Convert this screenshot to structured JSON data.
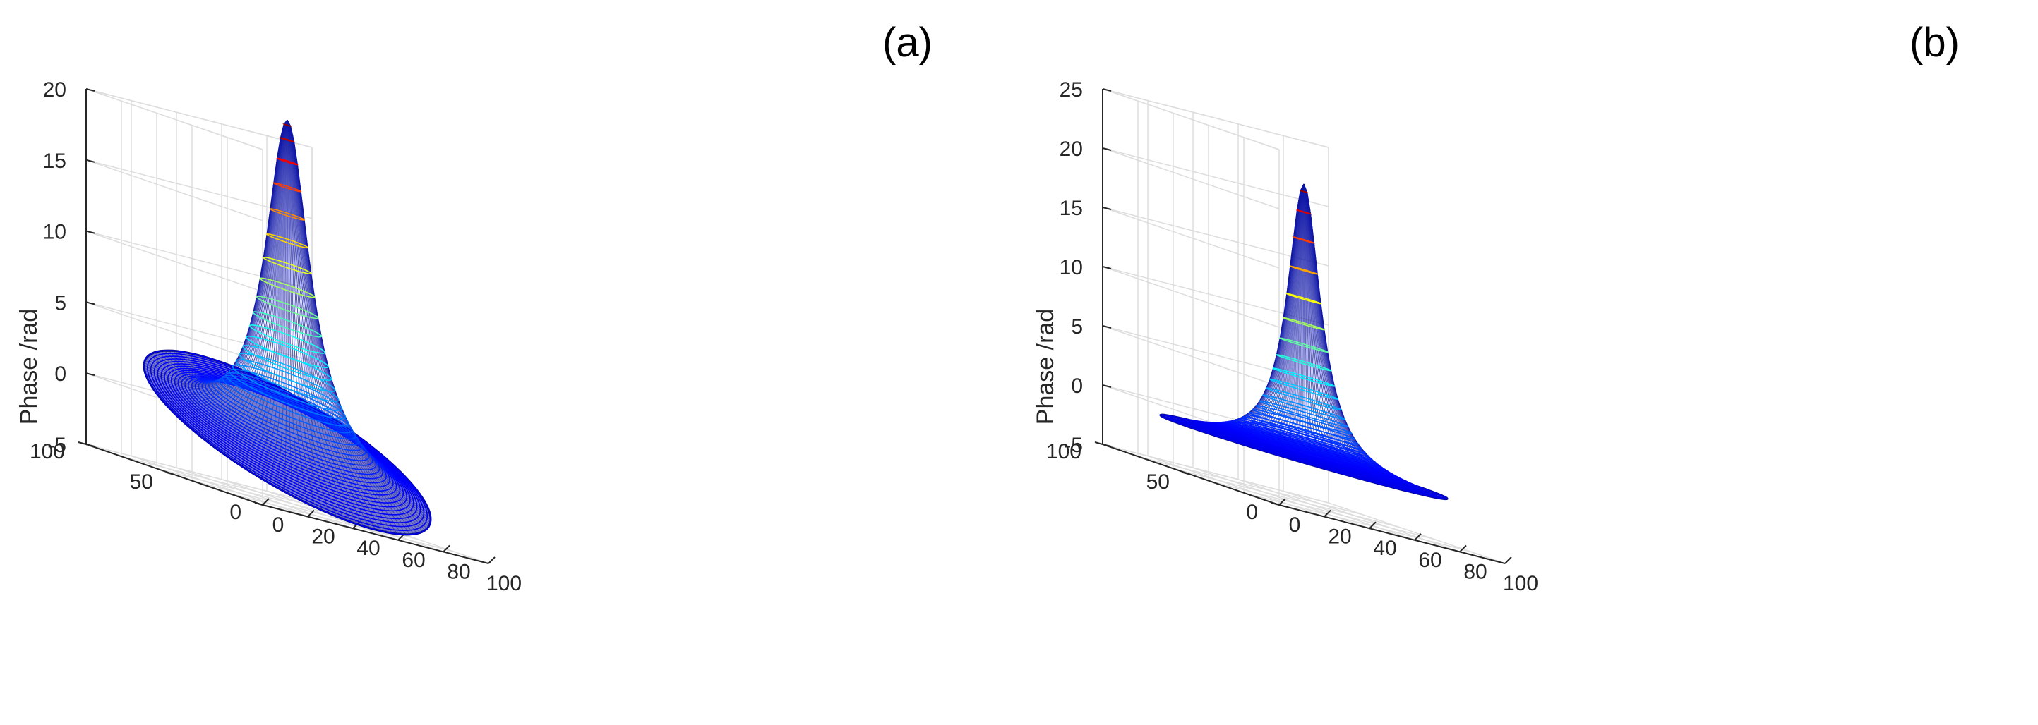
{
  "chart_data": [
    {
      "type": "surface",
      "panel_label": "(a)",
      "zlabel": "Phase /rad",
      "xlim": [
        0,
        100
      ],
      "ylim": [
        0,
        100
      ],
      "zlim": [
        -5,
        20
      ],
      "x_ticks": [
        0,
        20,
        40,
        60,
        80,
        100
      ],
      "y_ticks": [
        0,
        50,
        100
      ],
      "z_ticks": [
        -5,
        0,
        5,
        10,
        15,
        20
      ],
      "grid": true,
      "colormap": "jet",
      "surface": {
        "shape": "circular aperture, centered peak",
        "center": [
          50,
          50
        ],
        "radius": 50,
        "peak_z": 22,
        "base_z": -1.5,
        "base_tilt": 4
      }
    },
    {
      "type": "surface",
      "panel_label": "(b)",
      "zlabel": "Phase /rad",
      "xlim": [
        0,
        100
      ],
      "ylim": [
        0,
        100
      ],
      "zlim": [
        -5,
        25
      ],
      "x_ticks": [
        0,
        20,
        40,
        60,
        80,
        100
      ],
      "y_ticks": [
        0,
        50,
        100
      ],
      "z_ticks": [
        -5,
        0,
        5,
        10,
        15,
        20,
        25
      ],
      "grid": true,
      "colormap": "jet",
      "surface": {
        "shape": "circular aperture, centered peak",
        "center": [
          50,
          50
        ],
        "radius": 50,
        "peak_z": 22,
        "base_z": -1.5,
        "base_tilt": 0
      }
    }
  ]
}
